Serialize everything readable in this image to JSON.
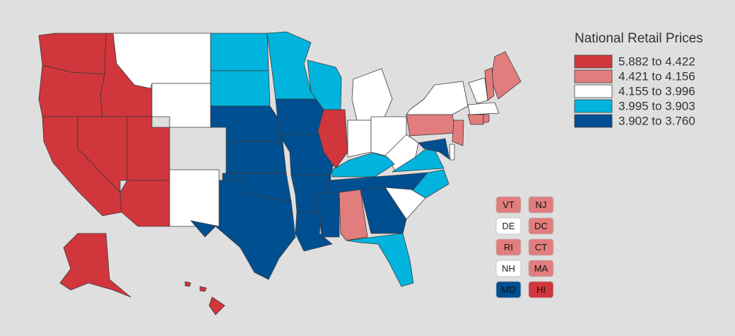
{
  "legend": {
    "title": "National Retail Prices",
    "classes": [
      {
        "label": "5.882 to 4.422",
        "color": "#d0363c"
      },
      {
        "label": "4.421 to 4.156",
        "color": "#e27d7d"
      },
      {
        "label": "4.155 to 3.996",
        "color": "#ffffff"
      },
      {
        "label": "3.995 to 3.903",
        "color": "#00b4de"
      },
      {
        "label": "3.902 to 3.760",
        "color": "#004f91"
      }
    ]
  },
  "map": {
    "regions": [
      0,
      0,
      0,
      2,
      2,
      0,
      0,
      0,
      0,
      2,
      2,
      3,
      3,
      4,
      4,
      4,
      4,
      3,
      4,
      4,
      4,
      4,
      3,
      0,
      2,
      2,
      2,
      3,
      3,
      4,
      3,
      4,
      1,
      4,
      3,
      2,
      2,
      1,
      1,
      1,
      2,
      2,
      1,
      1,
      1,
      4,
      2,
      0,
      0,
      0,
      0
    ]
  },
  "boxes": [
    {
      "label": "VT",
      "class": 1
    },
    {
      "label": "NJ",
      "class": 1
    },
    {
      "label": "DE",
      "class": 2
    },
    {
      "label": "DC",
      "class": 1
    },
    {
      "label": "RI",
      "class": 1
    },
    {
      "label": "CT",
      "class": 1
    },
    {
      "label": "NH",
      "class": 2
    },
    {
      "label": "MA",
      "class": 1
    },
    {
      "label": "MD",
      "class": 4
    },
    {
      "label": "HI",
      "class": 0
    }
  ]
}
